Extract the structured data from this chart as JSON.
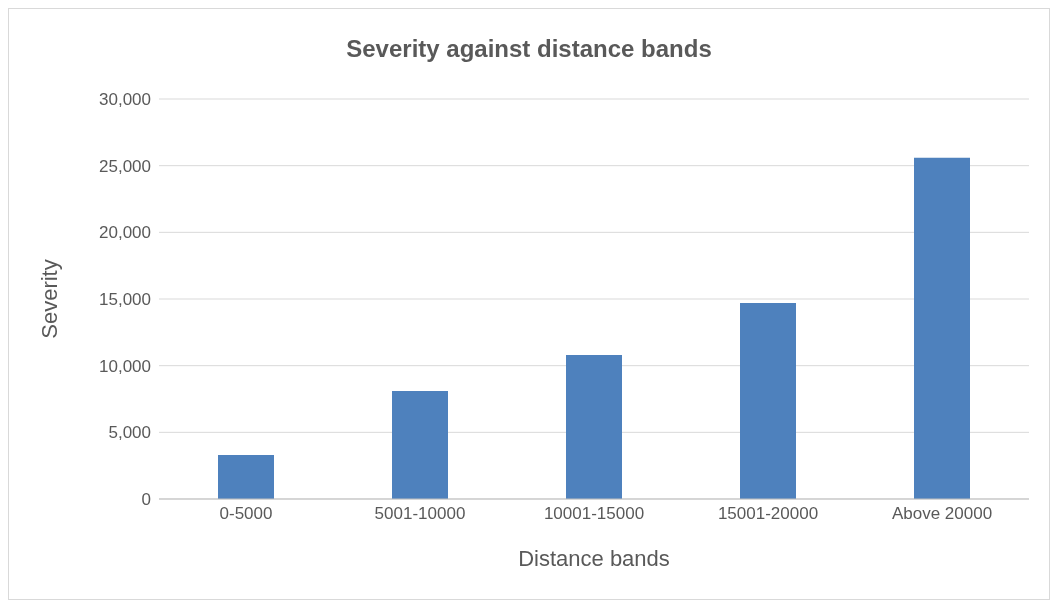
{
  "chart_data": {
    "type": "bar",
    "title": "Severity against distance bands",
    "xlabel": "Distance bands",
    "ylabel": "Severity",
    "categories": [
      "0-5000",
      "5001-10000",
      "10001-15000",
      "15001-20000",
      "Above 20000"
    ],
    "values": [
      3300,
      8100,
      10800,
      14700,
      25600
    ],
    "color": "#4e81bd",
    "ylim": [
      0,
      30000
    ],
    "yticks": [
      {
        "value": 0,
        "label": "0"
      },
      {
        "value": 5000,
        "label": "5,000"
      },
      {
        "value": 10000,
        "label": "10,000"
      },
      {
        "value": 15000,
        "label": "15,000"
      },
      {
        "value": 20000,
        "label": "20,000"
      },
      {
        "value": 25000,
        "label": "25,000"
      },
      {
        "value": 30000,
        "label": "30,000"
      }
    ],
    "grid": "y",
    "legend": false
  }
}
